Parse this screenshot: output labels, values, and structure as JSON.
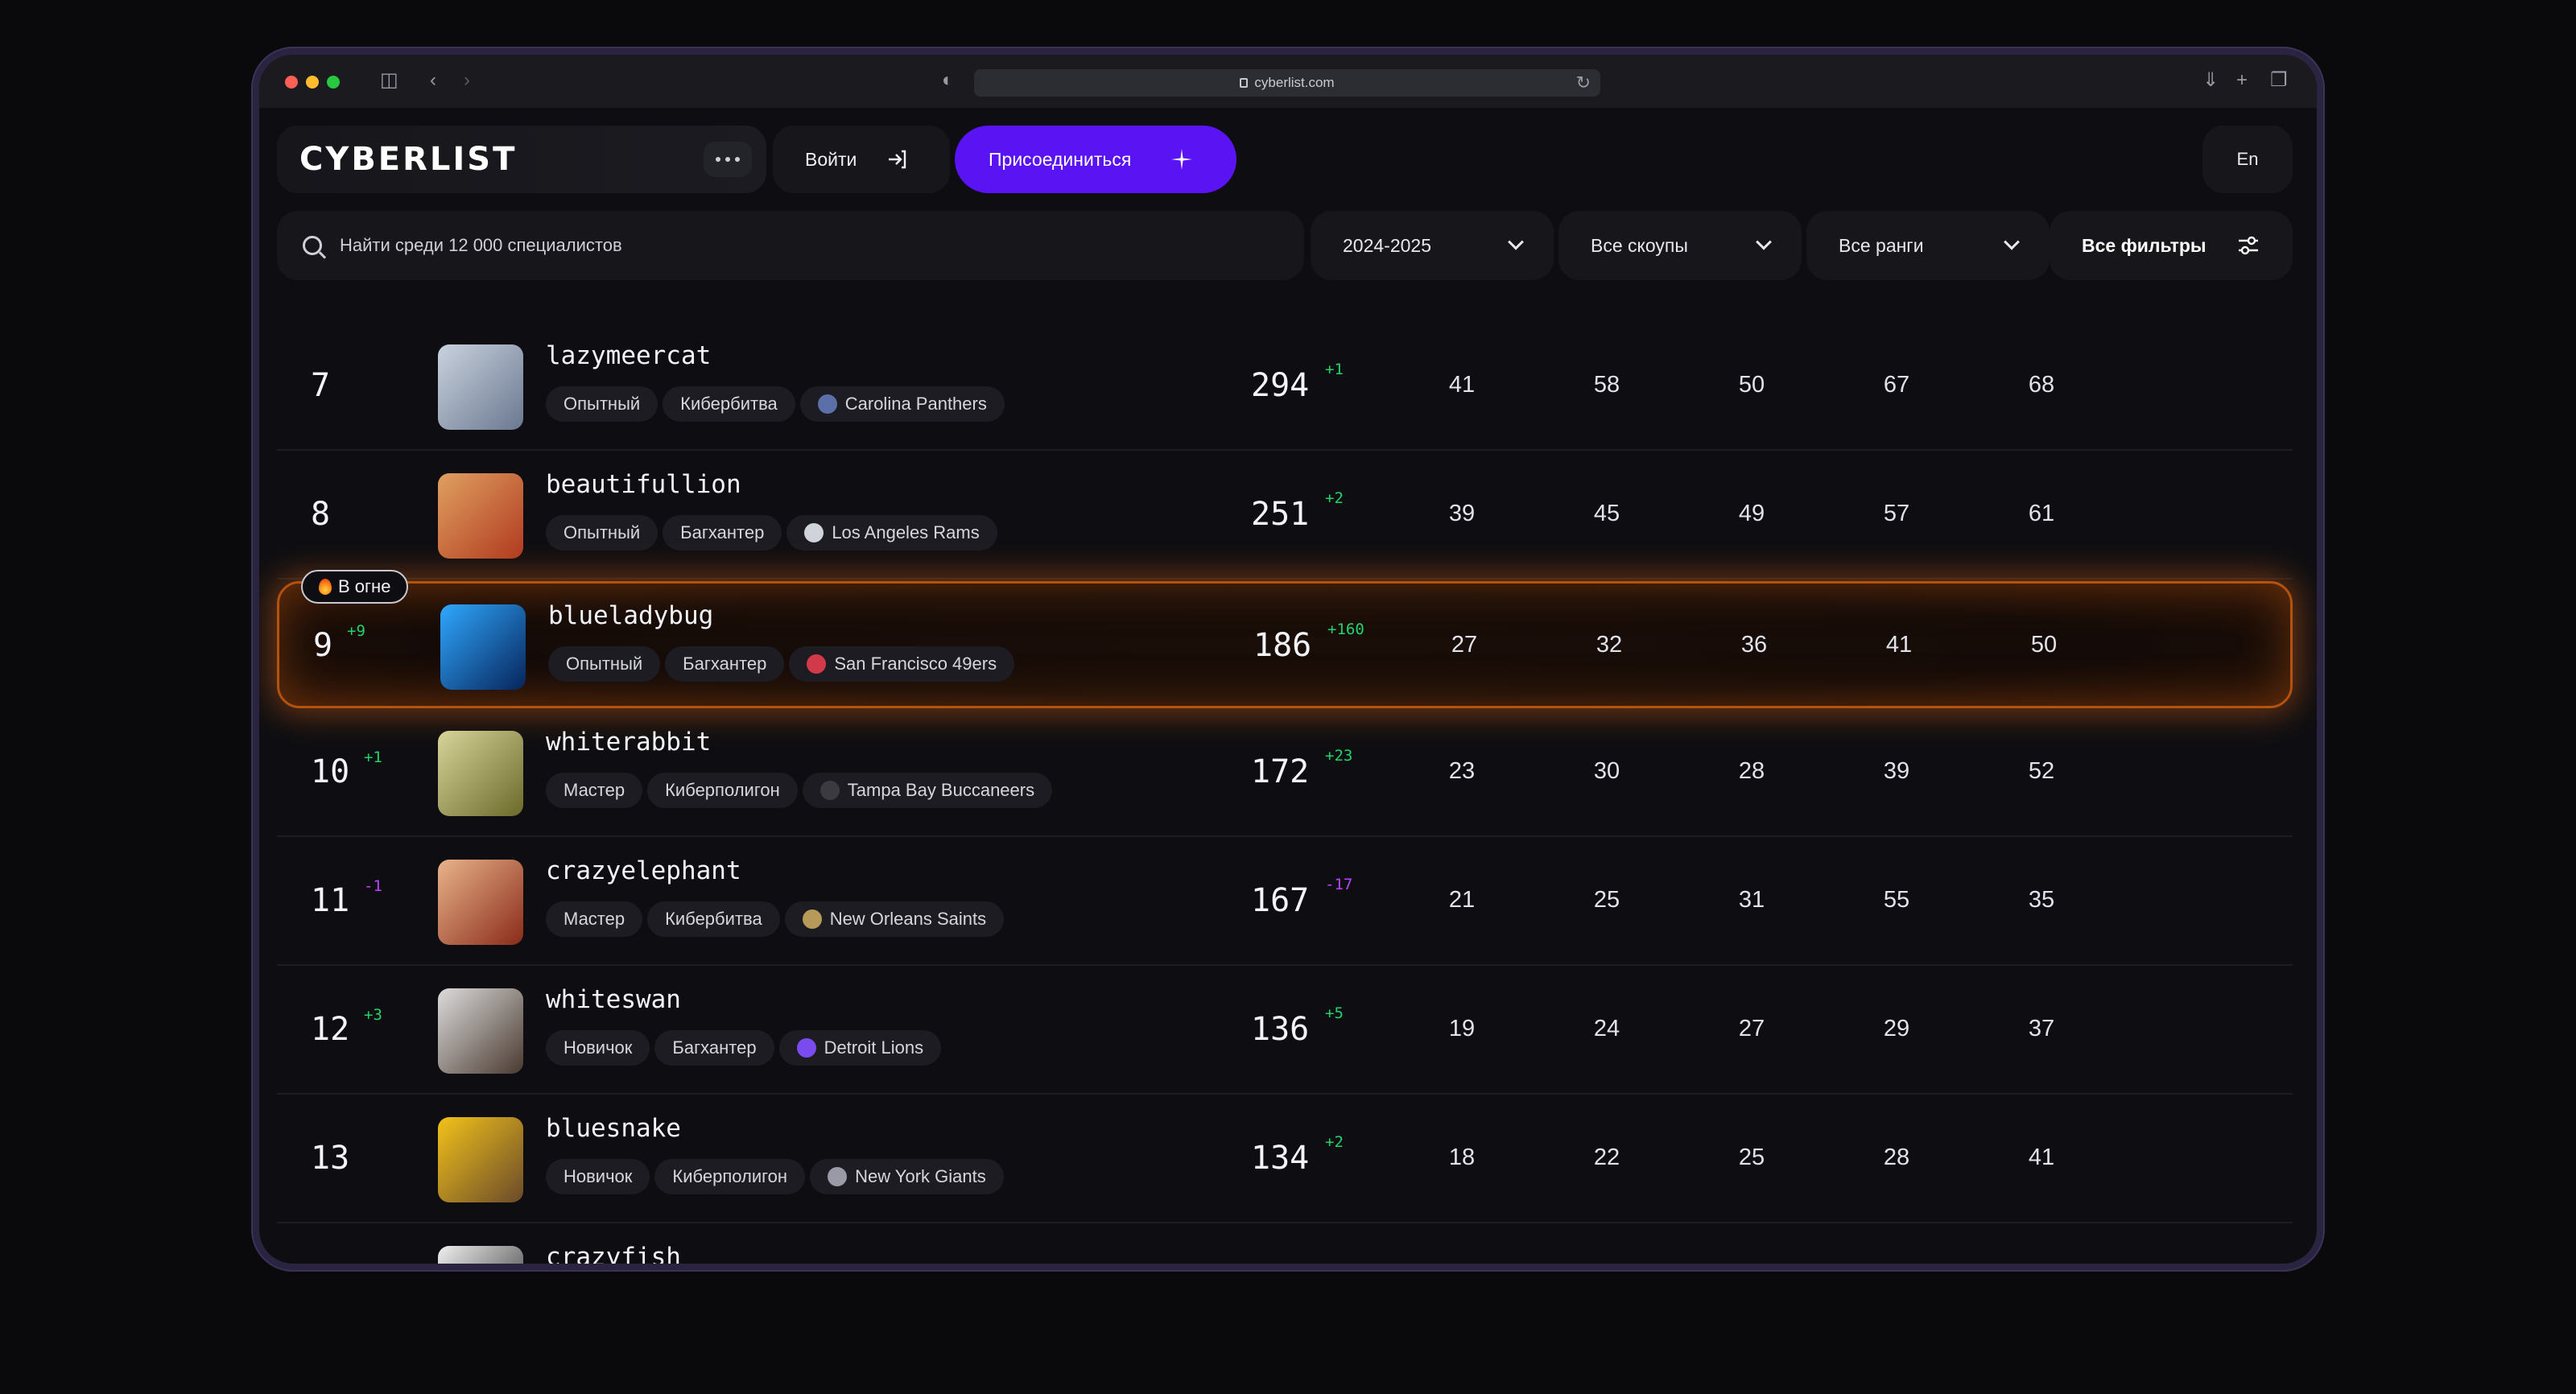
{
  "browser": {
    "url": "cyberlist.com"
  },
  "header": {
    "logo": "CYBERLIST",
    "login_label": "Войти",
    "join_label": "Присоединиться",
    "lang_label": "En"
  },
  "search": {
    "placeholder": "Найти среди 12 000 специалистов"
  },
  "filters": {
    "season": "2024-2025",
    "scopes": "Все скоупы",
    "ranks": "Все ранги",
    "all_filters": "Все фильтры"
  },
  "fire_badge": "В огне",
  "rows": [
    {
      "rank": "7",
      "rank_delta": "",
      "nick": "lazymeercat",
      "level": "Опытный",
      "track": "Кибербитва",
      "team": "Carolina Panthers",
      "team_color": "#5b6fa8",
      "score": "294",
      "score_delta": "+1",
      "stats": [
        "41",
        "58",
        "50",
        "67",
        "68"
      ],
      "avatar_colors": [
        "#c9d2de",
        "#6a7890"
      ]
    },
    {
      "rank": "8",
      "rank_delta": "",
      "nick": "beautifullion",
      "level": "Опытный",
      "track": "Багхантер",
      "team": "Los Angeles Rams",
      "team_color": "#cfd3da",
      "score": "251",
      "score_delta": "+2",
      "stats": [
        "39",
        "45",
        "49",
        "57",
        "61"
      ],
      "avatar_colors": [
        "#e0a060",
        "#b03a20"
      ]
    },
    {
      "rank": "9",
      "rank_delta": "+9",
      "nick": "blueladybug",
      "level": "Опытный",
      "track": "Багхантер",
      "team": "San Francisco 49ers",
      "team_color": "#d23a4a",
      "score": "186",
      "score_delta": "+160",
      "stats": [
        "27",
        "32",
        "36",
        "41",
        "50"
      ],
      "avatar_colors": [
        "#2fa8ff",
        "#07245a"
      ]
    },
    {
      "rank": "10",
      "rank_delta": "+1",
      "nick": "whiterabbit",
      "level": "Мастер",
      "track": "Киберполигон",
      "team": "Tampa Bay Buccaneers",
      "team_color": "#3a3a40",
      "score": "172",
      "score_delta": "+23",
      "stats": [
        "23",
        "30",
        "28",
        "39",
        "52"
      ],
      "avatar_colors": [
        "#d8d49a",
        "#6b6a2a"
      ]
    },
    {
      "rank": "11",
      "rank_delta": "-1",
      "nick": "crazyelephant",
      "level": "Мастер",
      "track": "Кибербитва",
      "team": "New Orleans Saints",
      "team_color": "#b79a5a",
      "score": "167",
      "score_delta": "-17",
      "stats": [
        "21",
        "25",
        "31",
        "55",
        "35"
      ],
      "avatar_colors": [
        "#e8b48a",
        "#8a2a1a"
      ]
    },
    {
      "rank": "12",
      "rank_delta": "+3",
      "nick": "whiteswan",
      "level": "Новичок",
      "track": "Багхантер",
      "team": "Detroit Lions",
      "team_color": "#7a4cf0",
      "score": "136",
      "score_delta": "+5",
      "stats": [
        "19",
        "24",
        "27",
        "29",
        "37"
      ],
      "avatar_colors": [
        "#dcdcdc",
        "#4a3a30"
      ]
    },
    {
      "rank": "13",
      "rank_delta": "",
      "nick": "bluesnake",
      "level": "Новичок",
      "track": "Киберполигон",
      "team": "New York Giants",
      "team_color": "#9a9aa6",
      "score": "134",
      "score_delta": "+2",
      "stats": [
        "18",
        "22",
        "25",
        "28",
        "41"
      ],
      "avatar_colors": [
        "#f2c21a",
        "#6a4a2a"
      ]
    },
    {
      "rank": "",
      "rank_delta": "",
      "nick": "crazyfish",
      "level": "",
      "track": "",
      "team": "",
      "team_color": "#333",
      "score": "",
      "score_delta": "",
      "stats": [
        "",
        "",
        "",
        "",
        ""
      ],
      "avatar_colors": [
        "#f0f0f0",
        "#222"
      ]
    }
  ]
}
